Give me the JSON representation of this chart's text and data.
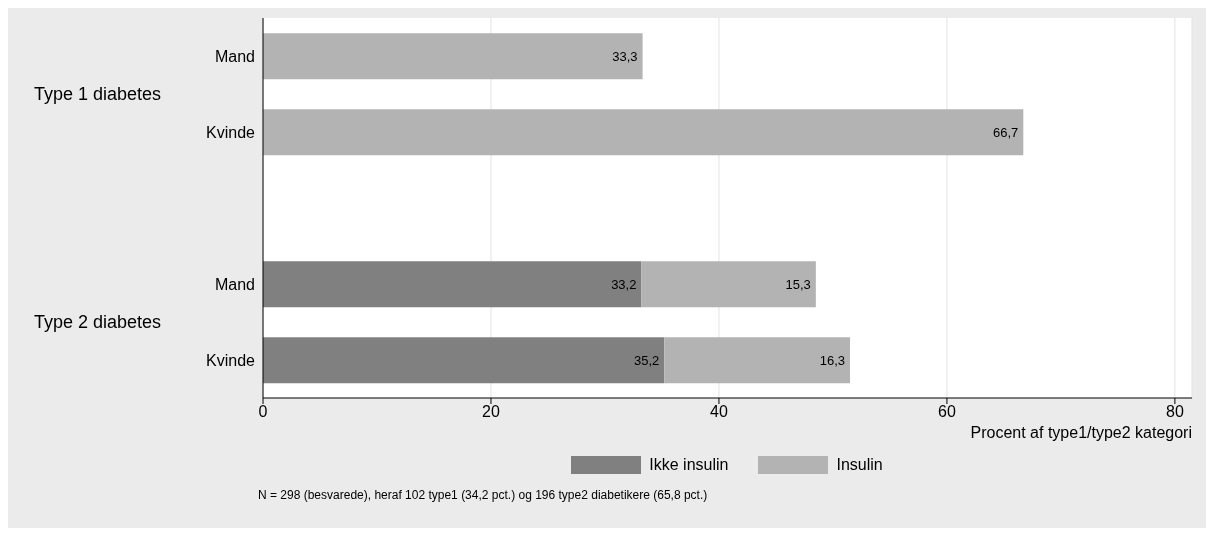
{
  "chart_data": {
    "type": "bar",
    "orientation": "horizontal",
    "stacked": true,
    "categories": [
      "Mand",
      "Kvinde",
      null,
      "Mand",
      "Kvinde"
    ],
    "series": [
      {
        "name": "Ikke insulin",
        "color": "#808080",
        "values": [
          null,
          null,
          null,
          33.2,
          35.2
        ],
        "value_labels": [
          null,
          null,
          null,
          "33,2",
          "35,2"
        ]
      },
      {
        "name": "Insulin",
        "color": "#b3b3b3",
        "values": [
          33.3,
          66.7,
          null,
          15.3,
          16.3
        ],
        "value_labels": [
          "33,3",
          "66,7",
          null,
          "15,3",
          "16,3"
        ]
      }
    ],
    "xlim": [
      0,
      81.5
    ],
    "xticks": [
      0,
      20,
      40,
      60,
      80
    ],
    "xlabel": "Procent af type1/type2 kategori",
    "grid": "x",
    "legend": "bottom",
    "annotations": [
      "Type 1 diabetes",
      "Type 2 diabetes",
      "N = 298 (besvarede), heraf 102 type1 (34,2 pct.) og 196 type2 diabetikere (65,8 pct.)"
    ]
  }
}
